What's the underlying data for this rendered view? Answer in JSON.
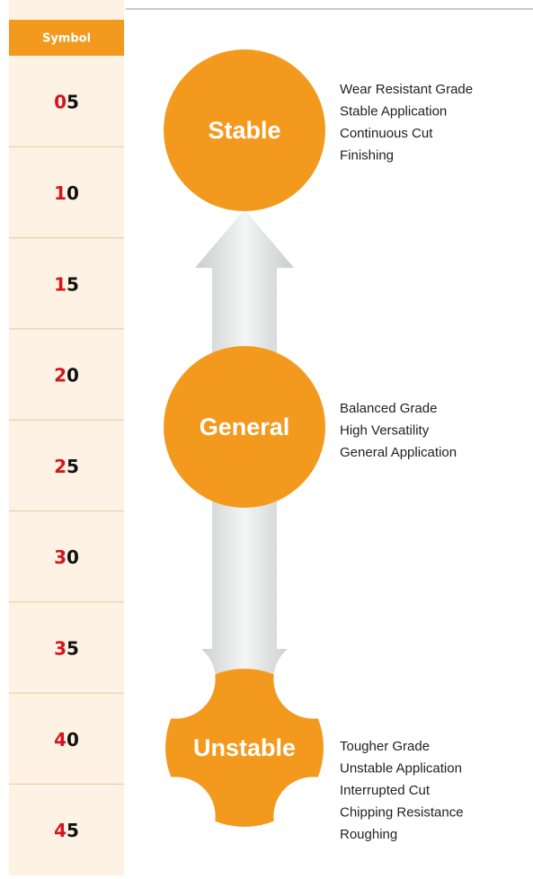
{
  "header": {
    "symbol": "Symbol"
  },
  "symbols": [
    {
      "lead": "0",
      "rest": "5"
    },
    {
      "lead": "1",
      "rest": "0"
    },
    {
      "lead": "1",
      "rest": "5"
    },
    {
      "lead": "2",
      "rest": "0"
    },
    {
      "lead": "2",
      "rest": "5"
    },
    {
      "lead": "3",
      "rest": "0"
    },
    {
      "lead": "3",
      "rest": "5"
    },
    {
      "lead": "4",
      "rest": "0"
    },
    {
      "lead": "4",
      "rest": "5"
    }
  ],
  "states": [
    {
      "label": "Stable",
      "lines": [
        "Wear Resistant Grade",
        "Stable Application",
        "Continuous Cut",
        "Finishing"
      ]
    },
    {
      "label": "General",
      "lines": [
        "Balanced Grade",
        "High Versatility",
        "General Application"
      ]
    },
    {
      "label": "Unstable",
      "lines": [
        "Tougher Grade",
        "Unstable Application",
        "Interrupted Cut",
        "Chipping Resistance",
        "Roughing"
      ]
    }
  ]
}
